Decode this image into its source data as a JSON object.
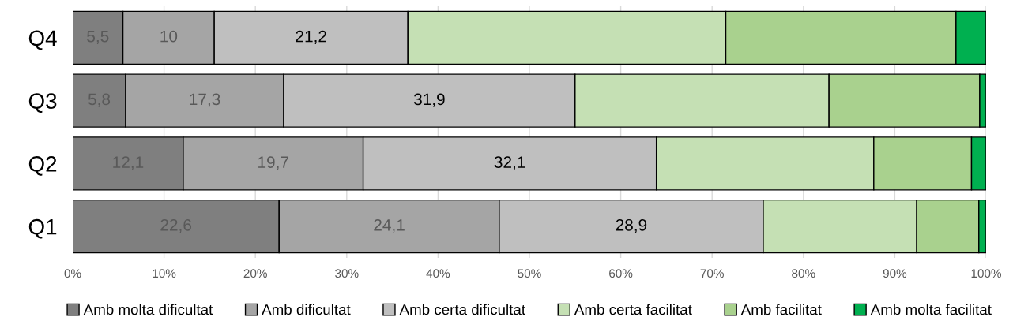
{
  "chart_data": {
    "type": "bar",
    "orientation": "horizontal",
    "stacked": true,
    "categories": [
      "Q4",
      "Q3",
      "Q2",
      "Q1"
    ],
    "series": [
      {
        "name": "Amb molta dificultat",
        "color": "#7f7f7f",
        "values": [
          5.5,
          5.8,
          12.1,
          22.6
        ],
        "value_labels": [
          "5,5",
          "5,8",
          "12,1",
          "22,6"
        ]
      },
      {
        "name": "Amb dificultat",
        "color": "#a5a5a5",
        "values": [
          10,
          17.3,
          19.7,
          24.1
        ],
        "value_labels": [
          "10",
          "17,3",
          "19,7",
          "24,1"
        ]
      },
      {
        "name": "Amb certa dificultat",
        "color": "#bfbfbf",
        "values": [
          21.2,
          31.9,
          32.1,
          28.9
        ],
        "value_labels": [
          "21,2",
          "31,9",
          "32,1",
          "28,9"
        ]
      },
      {
        "name": "Amb certa facilitat",
        "color": "#c5e0b4",
        "values": [
          34.8,
          27.8,
          23.8,
          16.8
        ]
      },
      {
        "name": "Amb facilitat",
        "color": "#a9d18e",
        "values": [
          25.2,
          16.5,
          10.7,
          6.8
        ]
      },
      {
        "name": "Amb molta facilitat",
        "color": "#00b050",
        "values": [
          3.3,
          0.7,
          1.6,
          0.8
        ]
      }
    ],
    "xlim": [
      0,
      100
    ],
    "xticks": [
      {
        "value": 0,
        "label": "0%"
      },
      {
        "value": 10,
        "label": "10%"
      },
      {
        "value": 20,
        "label": "20%"
      },
      {
        "value": 30,
        "label": "30%"
      },
      {
        "value": 40,
        "label": "40%"
      },
      {
        "value": 50,
        "label": "50%"
      },
      {
        "value": 60,
        "label": "60%"
      },
      {
        "value": 70,
        "label": "70%"
      },
      {
        "value": 80,
        "label": "80%"
      },
      {
        "value": 90,
        "label": "90%"
      },
      {
        "value": 100,
        "label": "100%"
      }
    ],
    "grid": "x",
    "legend": "bottom"
  }
}
